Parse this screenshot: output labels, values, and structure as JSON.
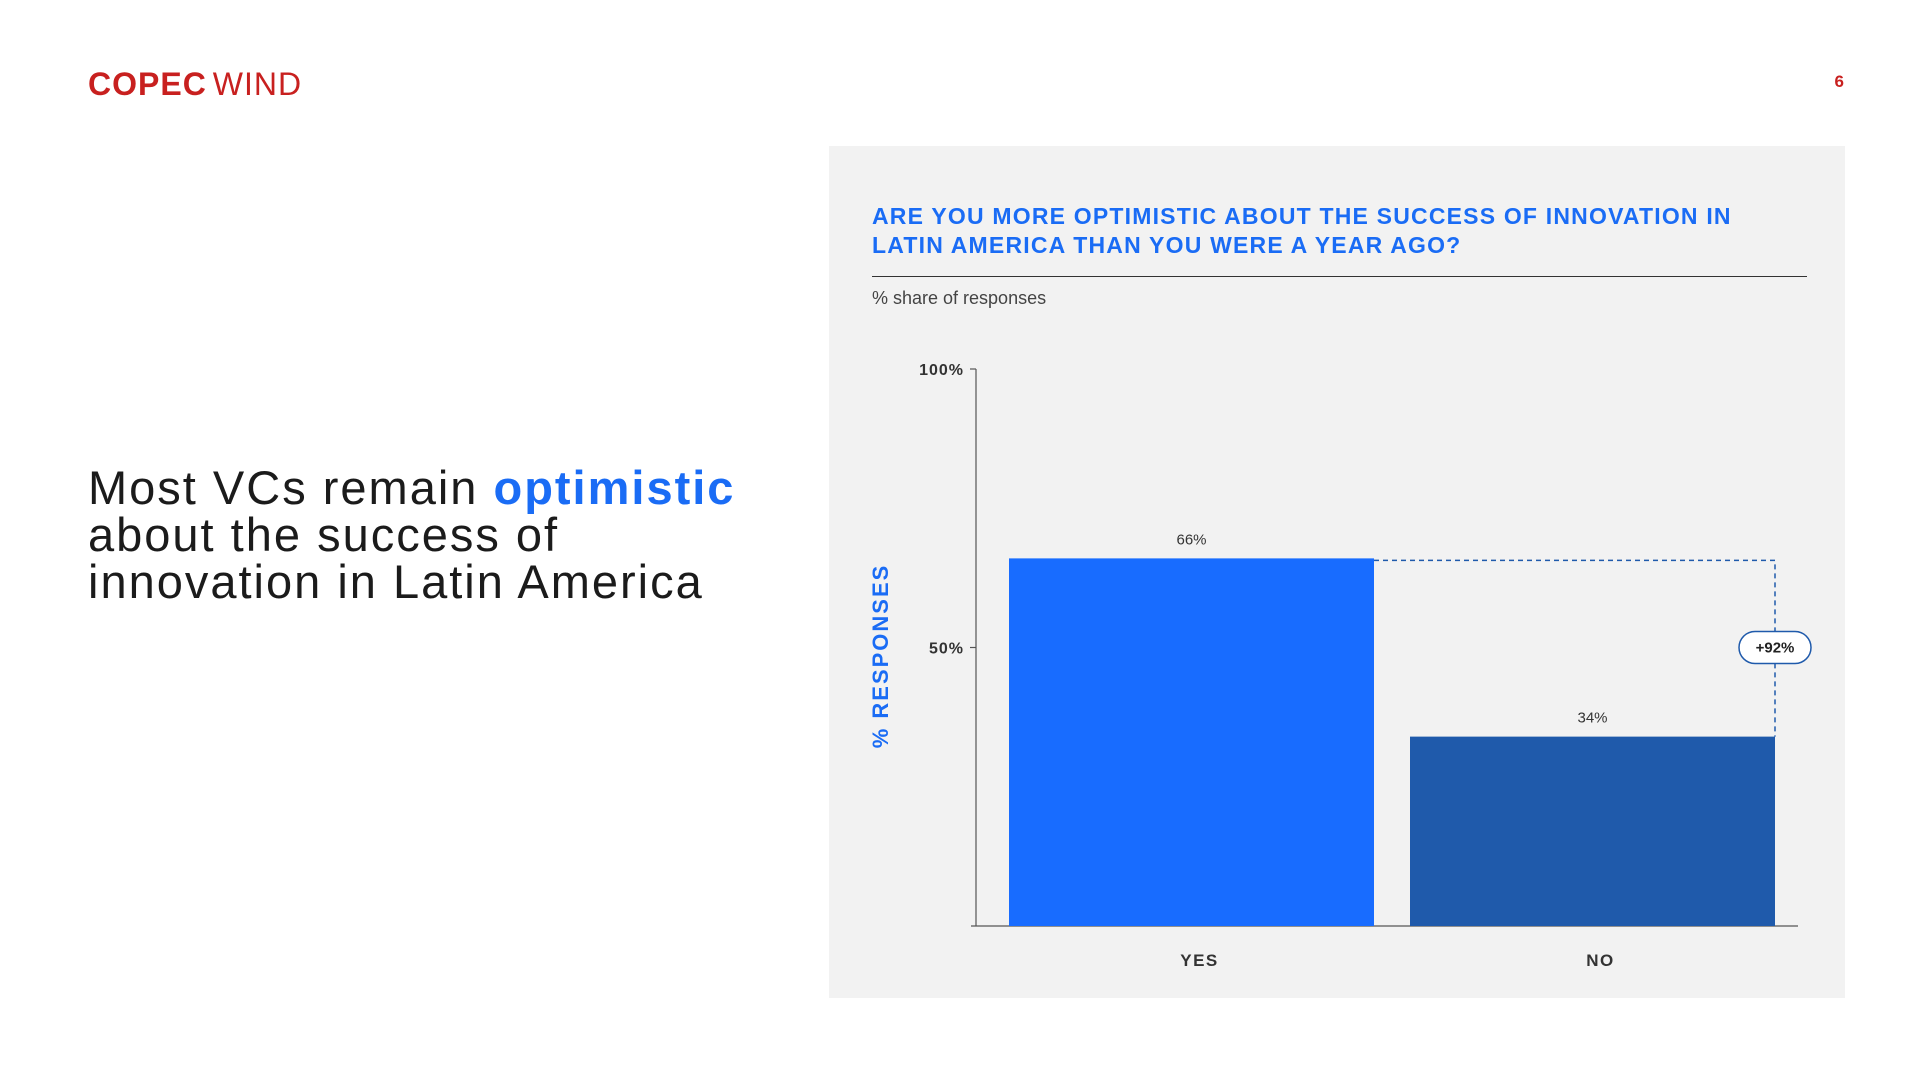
{
  "logo": {
    "part1": "COPEC",
    "part2": "WIND"
  },
  "page_number": "6",
  "headline": {
    "before": "Most VCs remain ",
    "accent": "optimistic",
    "after": " about the success of innovation in Latin America"
  },
  "colors": {
    "brand_red": "#c8201f",
    "accent_blue": "#1a6cf5",
    "bar_yes": "#186cff",
    "bar_no": "#1f5aab"
  },
  "chart_data": {
    "type": "bar",
    "title": "ARE YOU MORE OPTIMISTIC ABOUT THE SUCCESS OF INNOVATION IN LATIN AMERICA THAN YOU WERE A YEAR AGO?",
    "subtitle": "% share of responses",
    "ylabel": "% RESPONSES",
    "xlabel": "",
    "categories": [
      "YES",
      "NO"
    ],
    "values": [
      66,
      34
    ],
    "value_labels": [
      "66%",
      "34%"
    ],
    "ylim": [
      0,
      100
    ],
    "yticks": [
      50,
      100
    ],
    "ytick_labels": [
      "50%",
      "100%"
    ],
    "bar_colors": [
      "#186cff",
      "#1f5aab"
    ],
    "annotation": {
      "label": "+92%",
      "from": "YES",
      "to": "NO"
    },
    "grid": false,
    "legend": "none"
  }
}
